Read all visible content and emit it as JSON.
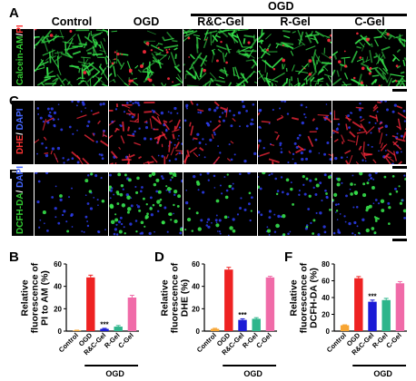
{
  "figure": {
    "panel_letters": [
      "A",
      "C",
      "E",
      "B",
      "D",
      "F"
    ],
    "column_headers": [
      "Control",
      "OGD",
      "R&C-Gel",
      "R-Gel",
      "C-Gel"
    ],
    "group_header": "OGD",
    "row_labels": [
      {
        "parts": [
          {
            "text": "Calcein-AM",
            "color": "#33cc33"
          },
          {
            "text": "/",
            "color": "#ffffff"
          },
          {
            "text": "PI",
            "color": "#ff3333"
          }
        ]
      },
      {
        "parts": [
          {
            "text": "DHE",
            "color": "#ff3333"
          },
          {
            "text": "/ ",
            "color": "#ffffff"
          },
          {
            "text": "DAPI",
            "color": "#4466ff"
          }
        ]
      },
      {
        "parts": [
          {
            "text": "DCFH-DA",
            "color": "#33cc33"
          },
          {
            "text": "/ ",
            "color": "#ffffff"
          },
          {
            "text": "DAPI",
            "color": "#4466ff"
          }
        ]
      }
    ],
    "micrograph_rows": [
      {
        "name": "calcein-pi",
        "channels": [
          "green",
          "red"
        ],
        "density": [
          0.95,
          0.35,
          0.8,
          0.75,
          0.55
        ]
      },
      {
        "name": "dhe-dapi",
        "channels": [
          "blue",
          "red"
        ],
        "density": [
          0.25,
          0.9,
          0.3,
          0.35,
          0.85
        ]
      },
      {
        "name": "dcfh-dapi",
        "channels": [
          "blue",
          "green"
        ],
        "density": [
          0.1,
          0.85,
          0.25,
          0.3,
          0.55
        ]
      }
    ]
  },
  "chart_data": [
    {
      "type": "bar",
      "panel": "B",
      "categories": [
        "Control",
        "OGD",
        "R&C-Gel",
        "R-Gel",
        "C-Gel"
      ],
      "values": [
        0.5,
        48,
        2,
        4,
        30
      ],
      "errors": [
        0.3,
        2,
        0.5,
        1,
        2
      ],
      "colors": [
        "#f7a533",
        "#ee2222",
        "#1a1ad6",
        "#2db58b",
        "#f06ba8"
      ],
      "ylabel": "Relative fluorescence of PI to AM (%)",
      "ylim": [
        0,
        60
      ],
      "yticks": [
        0,
        20,
        40,
        60
      ],
      "significance": {
        "category": "R&C-Gel",
        "text": "***"
      },
      "group_label": "OGD"
    },
    {
      "type": "bar",
      "panel": "D",
      "categories": [
        "Control",
        "OGD",
        "R&C-Gel",
        "R-Gel",
        "C-Gel"
      ],
      "values": [
        2,
        55,
        10,
        11,
        48
      ],
      "errors": [
        0.5,
        2,
        1,
        1,
        1
      ],
      "colors": [
        "#f7a533",
        "#ee2222",
        "#1a1ad6",
        "#2db58b",
        "#f06ba8"
      ],
      "ylabel": "Relative fluorescence of DHE (%)",
      "ylim": [
        0,
        60
      ],
      "yticks": [
        0,
        20,
        40,
        60
      ],
      "significance": {
        "category": "R&C-Gel",
        "text": "***"
      },
      "group_label": "OGD"
    },
    {
      "type": "bar",
      "panel": "F",
      "categories": [
        "Control",
        "OGD",
        "R&C-Gel",
        "R-Gel",
        "C-Gel"
      ],
      "values": [
        7,
        63,
        35,
        37,
        57
      ],
      "errors": [
        0.5,
        2,
        2,
        2,
        2
      ],
      "colors": [
        "#f7a533",
        "#ee2222",
        "#1a1ad6",
        "#2db58b",
        "#f06ba8"
      ],
      "ylabel": "Relative fluorescence of DCFH-DA (%)",
      "ylim": [
        0,
        80
      ],
      "yticks": [
        0,
        20,
        40,
        60,
        80
      ],
      "significance": {
        "category": "R&C-Gel",
        "text": "***"
      },
      "group_label": "OGD"
    }
  ]
}
